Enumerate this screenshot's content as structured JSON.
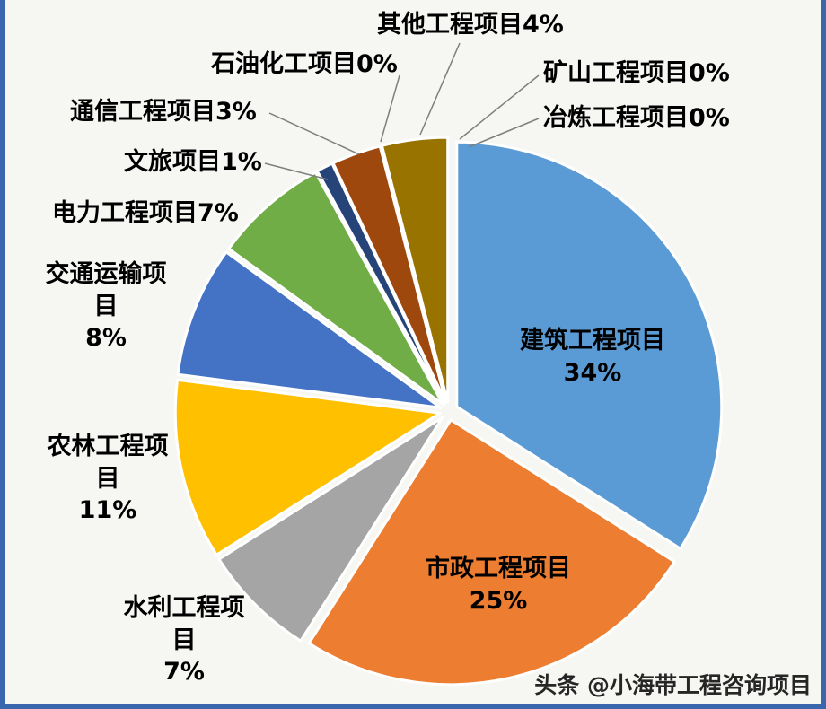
{
  "page": {
    "background": "#F6F6F2",
    "border_color": "#3A66AE"
  },
  "chart_data": {
    "type": "pie",
    "title": "",
    "start_angle_deg": 0,
    "direction": "clockwise",
    "exploded": true,
    "slice_border_color": "#FFFFFF",
    "leader_line_color": "#7F7F7F",
    "slices": [
      {
        "name": "建筑工程项目",
        "value": 34,
        "color": "#5B9BD5",
        "display": "建筑工程项目\n34%"
      },
      {
        "name": "市政工程项目",
        "value": 25,
        "color": "#ED7D31",
        "display": "市政工程项目\n25%"
      },
      {
        "name": "水利工程项目",
        "value": 7,
        "color": "#A5A5A5",
        "display": "水利工程项\n目\n7%"
      },
      {
        "name": "农林工程项目",
        "value": 11,
        "color": "#FFC000",
        "display": "农林工程项\n目\n11%"
      },
      {
        "name": "交通运输项目",
        "value": 8,
        "color": "#4472C4",
        "display": "交通运输项\n目\n8%"
      },
      {
        "name": "电力工程项目",
        "value": 7,
        "color": "#70AD47",
        "display": "电力工程项目7%"
      },
      {
        "name": "文旅项目",
        "value": 1,
        "color": "#264478",
        "display": "文旅项目1%"
      },
      {
        "name": "通信工程项目",
        "value": 3,
        "color": "#9E480E",
        "display": "通信工程项目3%"
      },
      {
        "name": "石油化工项目",
        "value": 0,
        "color": "#636363",
        "display": "石油化工项目0%"
      },
      {
        "name": "其他工程项目",
        "value": 4,
        "color": "#997300",
        "display": "其他工程项目4%"
      },
      {
        "name": "矿山工程项目",
        "value": 0,
        "color": "#255E91",
        "display": "矿山工程项目0%"
      },
      {
        "name": "冶炼工程项目",
        "value": 0,
        "color": "#43682B",
        "display": "冶炼工程项目0%"
      }
    ]
  },
  "watermark": {
    "text": "头条 @小海带工程咨询项目"
  }
}
